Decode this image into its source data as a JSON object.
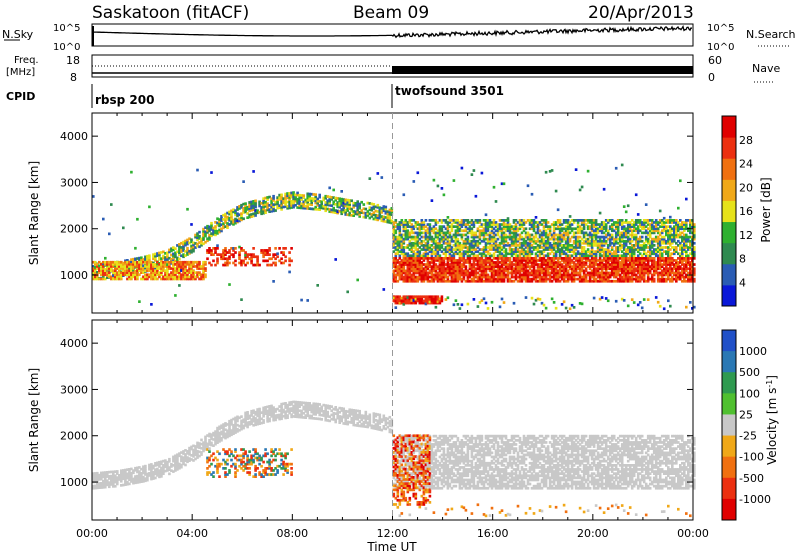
{
  "header": {
    "radar": "Saskatoon (fitACF)",
    "beam": "Beam 09",
    "date": "20/Apr/2013"
  },
  "nsky_panel": {
    "left_label": "N.Sky",
    "right_label": "N.Search",
    "left_ticks": [
      "10^5",
      "10^0"
    ],
    "right_ticks": [
      "10^5",
      "10^0"
    ]
  },
  "freq_panel": {
    "left_label_1": "Freq.",
    "left_label_2": "[MHz]",
    "right_label": "Nave",
    "left_ticks": [
      "18",
      "8"
    ],
    "right_ticks": [
      "60",
      "0"
    ]
  },
  "cpid_panel": {
    "label": "CPID",
    "segments": [
      {
        "name": "rbsp 200",
        "start_h": 0,
        "end_h": 12
      },
      {
        "name": "twofsound 3501",
        "start_h": 12,
        "end_h": 24
      }
    ]
  },
  "x_axis": {
    "label": "Time UT",
    "ticks": [
      "00:00",
      "04:00",
      "08:00",
      "12:00",
      "16:00",
      "20:00",
      "00:00"
    ]
  },
  "chart_data": [
    {
      "type": "heatmap",
      "title": "",
      "ylabel": "Slant Range [km]",
      "xlabel": "Time UT",
      "xlim": [
        0,
        24
      ],
      "ylim": [
        180,
        4500
      ],
      "yticks": [
        1000,
        2000,
        3000,
        4000
      ],
      "colorbar": {
        "label": "Power [dB]",
        "ticks": [
          "4",
          "8",
          "12",
          "16",
          "20",
          "24",
          "28"
        ],
        "range": [
          0,
          32
        ],
        "colors": [
          "#0a18d8",
          "#2a5cb4",
          "#2f8a50",
          "#2fb030",
          "#e6e21a",
          "#f0a818",
          "#f07010",
          "#ec3010",
          "#e00000"
        ]
      },
      "features": [
        {
          "desc": "ionospheric band",
          "t": [
            0,
            1,
            2,
            3,
            4,
            5,
            6,
            7,
            8,
            9,
            10,
            11,
            12
          ],
          "range_km": [
            1100,
            1150,
            1250,
            1400,
            1700,
            2100,
            2400,
            2550,
            2650,
            2600,
            2500,
            2420,
            2300
          ],
          "power_db": 14
        },
        {
          "desc": "near range 1000 km band",
          "t": [
            0,
            4
          ],
          "range_km": 1050,
          "power_db": 22
        },
        {
          "desc": "twofsound 1000 km band",
          "t": [
            12.3,
            24
          ],
          "range_km": 1100,
          "power_db": 26
        },
        {
          "desc": "twofsound 1500-2000 km band",
          "t": [
            12.3,
            24
          ],
          "range_km": 1700,
          "power_db": 12
        },
        {
          "desc": "near range echoes",
          "t": [
            12,
            14
          ],
          "range_km": 450,
          "power_db": 28
        }
      ]
    },
    {
      "type": "heatmap",
      "title": "",
      "ylabel": "Slant Range [km]",
      "xlabel": "Time UT",
      "xlim": [
        0,
        24
      ],
      "ylim": [
        180,
        4500
      ],
      "yticks": [
        1000,
        2000,
        3000,
        4000
      ],
      "colorbar": {
        "label": "Velocity [m s^-1]",
        "ticks": [
          "1000",
          "500",
          "100",
          "25",
          "-25",
          "-100",
          "-500",
          "-1000"
        ],
        "colors": [
          "#2050c8",
          "#2a78b4",
          "#2f9a50",
          "#50c030",
          "#c8c8c8",
          "#f0a818",
          "#f07010",
          "#ec3010",
          "#e00000"
        ]
      },
      "features": [
        {
          "desc": "ground scatter grey band",
          "t": [
            0,
            12
          ],
          "range_km": "1100-2600",
          "velocity": 0
        },
        {
          "desc": "ground scatter grey band",
          "t": [
            12.5,
            24
          ],
          "range_km": "900-2000",
          "velocity": 0
        },
        {
          "desc": "negative velocity echoes",
          "t": [
            12,
            13.5
          ],
          "range_km": "500-2000",
          "velocity": -400
        }
      ]
    }
  ]
}
